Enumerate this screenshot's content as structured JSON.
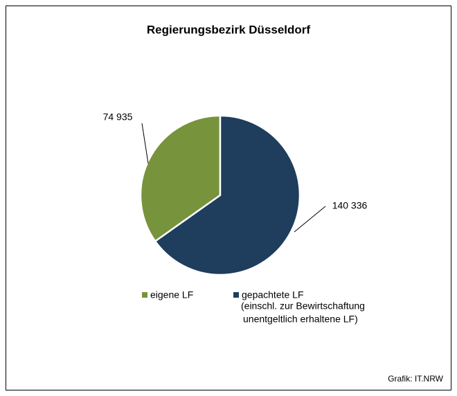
{
  "chart_data": {
    "type": "pie",
    "title": "Regierungsbezirk Düsseldorf",
    "categories": [
      "eigene LF",
      "gepachtete LF"
    ],
    "values": [
      74935,
      140336
    ],
    "value_labels": [
      "74 935",
      "140 336"
    ],
    "colors": [
      "#77933c",
      "#1f3d5c"
    ],
    "legend_note": [
      "(einschl. zur Bewirtschaftung",
      "unentgeltlich erhaltene LF)"
    ],
    "source": "Grafik: IT.NRW"
  }
}
